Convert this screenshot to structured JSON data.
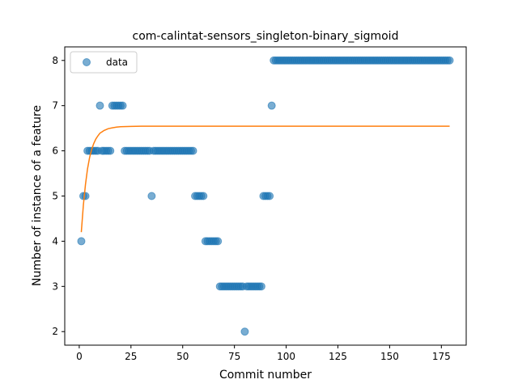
{
  "chart_data": {
    "type": "scatter",
    "title": "com-calintat-sensors_singleton-binary_sigmoid",
    "xlabel": "Commit number",
    "ylabel": "Number of instance of a feature",
    "xlim": [
      -7,
      187
    ],
    "ylim": [
      1.7,
      8.3
    ],
    "xticks": [
      0,
      25,
      50,
      75,
      100,
      125,
      150,
      175
    ],
    "yticks": [
      2,
      3,
      4,
      5,
      6,
      7,
      8
    ],
    "grid": false,
    "legend": {
      "position": "top-left",
      "entries": [
        "data"
      ]
    },
    "colors": {
      "points": "#1f77b4",
      "fit": "#ff7f0e"
    },
    "series": [
      {
        "name": "data",
        "kind": "scatter",
        "points": [
          [
            1,
            4
          ],
          [
            2,
            5
          ],
          [
            3,
            5
          ],
          [
            4,
            6
          ],
          [
            5,
            6
          ],
          [
            6,
            6
          ],
          [
            7,
            6
          ],
          [
            8,
            6
          ],
          [
            9,
            6
          ],
          [
            10,
            7
          ],
          [
            11,
            6
          ],
          [
            12,
            6
          ],
          [
            13,
            6
          ],
          [
            14,
            6
          ],
          [
            15,
            6
          ],
          [
            16,
            7
          ],
          [
            17,
            7
          ],
          [
            18,
            7
          ],
          [
            19,
            7
          ],
          [
            20,
            7
          ],
          [
            21,
            7
          ],
          [
            22,
            6
          ],
          [
            23,
            6
          ],
          [
            24,
            6
          ],
          [
            25,
            6
          ],
          [
            26,
            6
          ],
          [
            27,
            6
          ],
          [
            28,
            6
          ],
          [
            29,
            6
          ],
          [
            30,
            6
          ],
          [
            31,
            6
          ],
          [
            32,
            6
          ],
          [
            33,
            6
          ],
          [
            34,
            6
          ],
          [
            35,
            5
          ],
          [
            36,
            6
          ],
          [
            37,
            6
          ],
          [
            38,
            6
          ],
          [
            39,
            6
          ],
          [
            40,
            6
          ],
          [
            41,
            6
          ],
          [
            42,
            6
          ],
          [
            43,
            6
          ],
          [
            44,
            6
          ],
          [
            45,
            6
          ],
          [
            46,
            6
          ],
          [
            47,
            6
          ],
          [
            48,
            6
          ],
          [
            49,
            6
          ],
          [
            50,
            6
          ],
          [
            51,
            6
          ],
          [
            52,
            6
          ],
          [
            53,
            6
          ],
          [
            54,
            6
          ],
          [
            55,
            6
          ],
          [
            56,
            5
          ],
          [
            57,
            5
          ],
          [
            58,
            5
          ],
          [
            59,
            5
          ],
          [
            60,
            5
          ],
          [
            61,
            4
          ],
          [
            62,
            4
          ],
          [
            63,
            4
          ],
          [
            64,
            4
          ],
          [
            65,
            4
          ],
          [
            66,
            4
          ],
          [
            67,
            4
          ],
          [
            68,
            3
          ],
          [
            69,
            3
          ],
          [
            70,
            3
          ],
          [
            71,
            3
          ],
          [
            72,
            3
          ],
          [
            73,
            3
          ],
          [
            74,
            3
          ],
          [
            75,
            3
          ],
          [
            76,
            3
          ],
          [
            77,
            3
          ],
          [
            78,
            3
          ],
          [
            79,
            3
          ],
          [
            80,
            2
          ],
          [
            81,
            3
          ],
          [
            82,
            3
          ],
          [
            83,
            3
          ],
          [
            84,
            3
          ],
          [
            85,
            3
          ],
          [
            86,
            3
          ],
          [
            87,
            3
          ],
          [
            88,
            3
          ],
          [
            89,
            5
          ],
          [
            90,
            5
          ],
          [
            91,
            5
          ],
          [
            92,
            5
          ],
          [
            93,
            7
          ],
          [
            94,
            8
          ],
          [
            95,
            8
          ],
          [
            96,
            8
          ],
          [
            97,
            8
          ],
          [
            98,
            8
          ],
          [
            99,
            8
          ],
          [
            100,
            8
          ],
          [
            101,
            8
          ],
          [
            102,
            8
          ],
          [
            103,
            8
          ],
          [
            104,
            8
          ],
          [
            105,
            8
          ],
          [
            106,
            8
          ],
          [
            107,
            8
          ],
          [
            108,
            8
          ],
          [
            109,
            8
          ],
          [
            110,
            8
          ],
          [
            111,
            8
          ],
          [
            112,
            8
          ],
          [
            113,
            8
          ],
          [
            114,
            8
          ],
          [
            115,
            8
          ],
          [
            116,
            8
          ],
          [
            117,
            8
          ],
          [
            118,
            8
          ],
          [
            119,
            8
          ],
          [
            120,
            8
          ],
          [
            121,
            8
          ],
          [
            122,
            8
          ],
          [
            123,
            8
          ],
          [
            124,
            8
          ],
          [
            125,
            8
          ],
          [
            126,
            8
          ],
          [
            127,
            8
          ],
          [
            128,
            8
          ],
          [
            129,
            8
          ],
          [
            130,
            8
          ],
          [
            131,
            8
          ],
          [
            132,
            8
          ],
          [
            133,
            8
          ],
          [
            134,
            8
          ],
          [
            135,
            8
          ],
          [
            136,
            8
          ],
          [
            137,
            8
          ],
          [
            138,
            8
          ],
          [
            139,
            8
          ],
          [
            140,
            8
          ],
          [
            141,
            8
          ],
          [
            142,
            8
          ],
          [
            143,
            8
          ],
          [
            144,
            8
          ],
          [
            145,
            8
          ],
          [
            146,
            8
          ],
          [
            147,
            8
          ],
          [
            148,
            8
          ],
          [
            149,
            8
          ],
          [
            150,
            8
          ],
          [
            151,
            8
          ],
          [
            152,
            8
          ],
          [
            153,
            8
          ],
          [
            154,
            8
          ],
          [
            155,
            8
          ],
          [
            156,
            8
          ],
          [
            157,
            8
          ],
          [
            158,
            8
          ],
          [
            159,
            8
          ],
          [
            160,
            8
          ],
          [
            161,
            8
          ],
          [
            162,
            8
          ],
          [
            163,
            8
          ],
          [
            164,
            8
          ],
          [
            165,
            8
          ],
          [
            166,
            8
          ],
          [
            167,
            8
          ],
          [
            168,
            8
          ],
          [
            169,
            8
          ],
          [
            170,
            8
          ],
          [
            171,
            8
          ],
          [
            172,
            8
          ],
          [
            173,
            8
          ],
          [
            174,
            8
          ],
          [
            175,
            8
          ],
          [
            176,
            8
          ],
          [
            177,
            8
          ],
          [
            178,
            8
          ],
          [
            179,
            8
          ]
        ]
      },
      {
        "kind": "line",
        "points": [
          [
            1,
            4.2
          ],
          [
            2,
            4.8
          ],
          [
            3,
            5.25
          ],
          [
            4,
            5.6
          ],
          [
            5,
            5.85
          ],
          [
            6,
            6.03
          ],
          [
            7,
            6.16
          ],
          [
            8,
            6.26
          ],
          [
            9,
            6.33
          ],
          [
            10,
            6.39
          ],
          [
            12,
            6.45
          ],
          [
            14,
            6.49
          ],
          [
            16,
            6.51
          ],
          [
            18,
            6.525
          ],
          [
            20,
            6.533
          ],
          [
            25,
            6.54
          ],
          [
            30,
            6.545
          ],
          [
            50,
            6.545
          ],
          [
            100,
            6.545
          ],
          [
            150,
            6.545
          ],
          [
            179,
            6.545
          ]
        ]
      }
    ]
  }
}
